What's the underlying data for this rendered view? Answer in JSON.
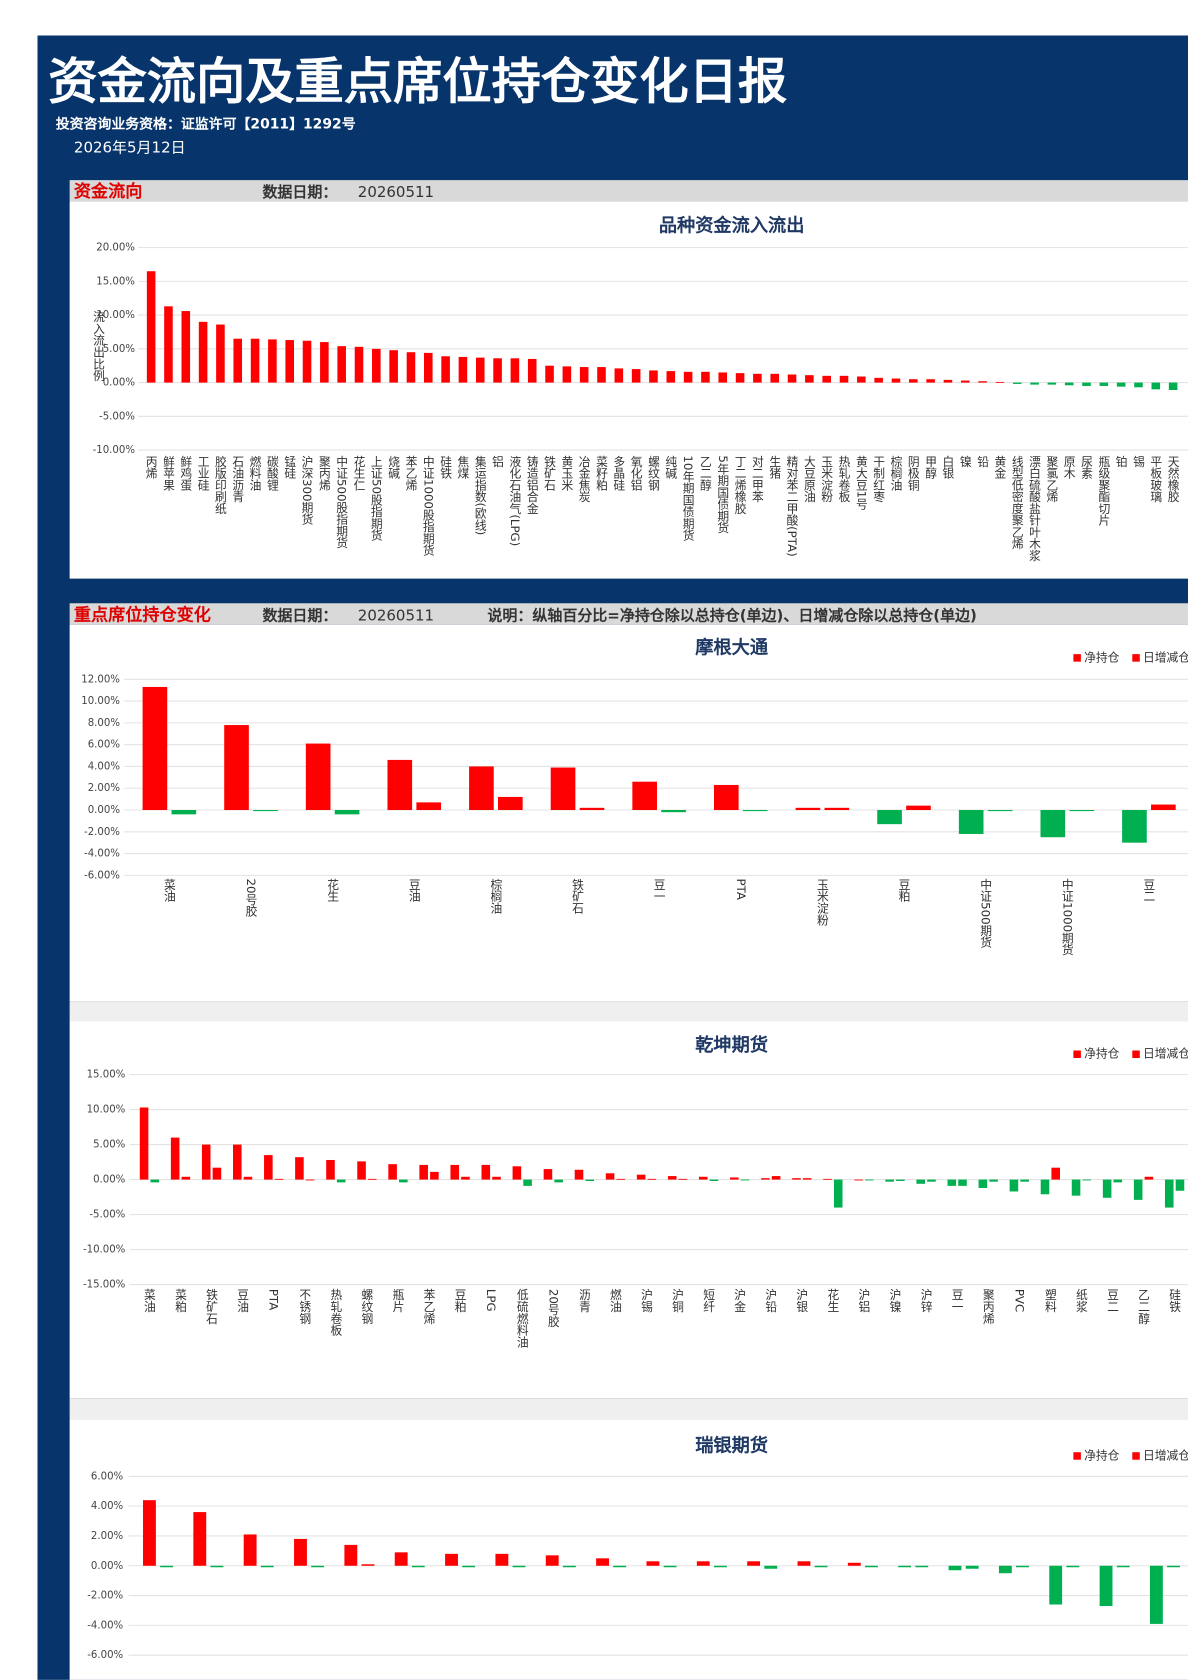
{
  "header": {
    "title": "资金流向及重点席位持仓变化日报",
    "license": "投资咨询业务资格：证监许可【2011】1292号",
    "date": "2026年5月12日"
  },
  "sections": [
    {
      "title": "资金流向",
      "date_label": "数据日期：",
      "date": "20260511"
    },
    {
      "title": "重点席位持仓变化",
      "date_label": "数据日期：",
      "date": "20260511",
      "note": "说明：纵轴百分比=净持仓除以总持仓(单边)、日增减仓除以总持仓(单边)"
    }
  ],
  "chart_data": [
    {
      "type": "bar",
      "title": "品种资金流入流出",
      "y_label": "流入流出比例",
      "categories": [
        "丙烯",
        "鲜苹果",
        "鲜鸡蛋",
        "工业硅",
        "胶版印刷纸",
        "石油沥青",
        "燃料油",
        "碳酸锂",
        "锰硅",
        "沪深300期货",
        "聚丙烯",
        "中证500股指期货",
        "花生仁",
        "上证50股指期货",
        "烧碱",
        "苯乙烯",
        "中证1000股指期货",
        "硅铁",
        "焦煤",
        "集运指数(欧线)",
        "铝",
        "液化石油气(LPG)",
        "铸造铝合金",
        "铁矿石",
        "黄玉米",
        "冶金焦炭",
        "菜籽粕",
        "多晶硅",
        "氧化铝",
        "螺纹钢",
        "纯碱",
        "10年期国债期货",
        "乙二醇",
        "5年期国债期货",
        "丁二烯橡胶",
        "对二甲苯",
        "生猪",
        "精对苯二甲酸(PTA)",
        "大豆原油",
        "玉米淀粉",
        "热轧卷板",
        "黄大豆1号",
        "干制红枣",
        "棕榈油",
        "阴极铜",
        "甲醇",
        "白银",
        "镍",
        "铅",
        "黄金",
        "线型低密度聚乙烯",
        "漂白硫酸盐针叶木浆",
        "聚氯乙烯",
        "原木",
        "尿素",
        "瓶级聚酯切片",
        "铂",
        "锡",
        "平板玻璃",
        "天然橡胶"
      ],
      "values": [
        16.5,
        11.3,
        10.6,
        9.0,
        8.6,
        6.5,
        6.5,
        6.4,
        6.3,
        6.2,
        6.0,
        5.4,
        5.3,
        5.0,
        4.8,
        4.5,
        4.4,
        3.9,
        3.8,
        3.7,
        3.6,
        3.6,
        3.5,
        2.5,
        2.4,
        2.3,
        2.3,
        2.1,
        2.0,
        1.8,
        1.7,
        1.6,
        1.6,
        1.5,
        1.4,
        1.3,
        1.3,
        1.2,
        1.1,
        1.0,
        1.0,
        0.9,
        0.7,
        0.6,
        0.5,
        0.5,
        0.4,
        0.3,
        0.2,
        0.1,
        -0.2,
        -0.3,
        -0.3,
        -0.4,
        -0.5,
        -0.5,
        -0.6,
        -0.7,
        -1.0,
        -1.1
      ],
      "color": "#ff0000",
      "negative_color": "#00b050",
      "ylim": [
        -10,
        20
      ],
      "yticks": [
        {
          "value": 20,
          "label": "20.00%"
        },
        {
          "value": 15,
          "label": "15.00%"
        },
        {
          "value": 10,
          "label": "10.00%"
        },
        {
          "value": 5,
          "label": "5.00%"
        },
        {
          "value": 0,
          "label": "0.00%"
        },
        {
          "value": -5,
          "label": "-5.00%"
        },
        {
          "value": -10,
          "label": "-10.00%"
        }
      ],
      "grid": true
    },
    {
      "type": "bar",
      "title": "摩根大通",
      "legend": "top-right",
      "categories": [
        "菜油",
        "20号胶",
        "花生",
        "豆油",
        "棕榈油",
        "铁矿石",
        "豆一",
        "PTA",
        "玉米淀粉",
        "豆粕",
        "中证500期货",
        "中证1000期货",
        "豆二"
      ],
      "series": [
        {
          "name": "净持仓",
          "color": "#ff0000",
          "values": [
            11.3,
            7.8,
            6.1,
            4.6,
            4.0,
            3.9,
            2.6,
            2.3,
            0.2,
            -1.3,
            -2.2,
            -2.5,
            -3.0
          ]
        },
        {
          "name": "日增减仓",
          "color": "#ff0000",
          "values": [
            -0.4,
            -0.1,
            -0.4,
            0.7,
            1.2,
            0.2,
            -0.2,
            -0.1,
            0.2,
            0.4,
            -0.1,
            -0.1,
            0.5
          ]
        }
      ],
      "negative_color": "#00b050",
      "ylim": [
        -6,
        12
      ],
      "yticks": [
        {
          "value": 12,
          "label": "12.00%"
        },
        {
          "value": 10,
          "label": "10.00%"
        },
        {
          "value": 8,
          "label": "8.00%"
        },
        {
          "value": 6,
          "label": "6.00%"
        },
        {
          "value": 4,
          "label": "4.00%"
        },
        {
          "value": 2,
          "label": "2.00%"
        },
        {
          "value": 0,
          "label": "0.00%"
        },
        {
          "value": -2,
          "label": "-2.00%"
        },
        {
          "value": -4,
          "label": "-4.00%"
        },
        {
          "value": -6,
          "label": "-6.00%"
        }
      ],
      "grid": true
    },
    {
      "type": "bar",
      "title": "乾坤期货",
      "legend": "top-right",
      "categories": [
        "菜油",
        "菜粕",
        "铁矿石",
        "豆油",
        "PTA",
        "不锈钢",
        "热轧卷板",
        "螺纹钢",
        "瓶片",
        "苯乙烯",
        "豆粕",
        "LPG",
        "低硫燃料油",
        "20号胶",
        "沥青",
        "燃油",
        "沪锡",
        "沪铜",
        "短纤",
        "沪金",
        "沪铅",
        "沪银",
        "花生",
        "沪铝",
        "沪镍",
        "沪锌",
        "豆一",
        "聚丙烯",
        "PVC",
        "塑料",
        "纸浆",
        "豆二",
        "乙二醇",
        "硅铁"
      ],
      "series": [
        {
          "name": "净持仓",
          "color": "#ff0000",
          "values": [
            10.3,
            6.0,
            5.0,
            5.0,
            3.5,
            3.2,
            2.8,
            2.6,
            2.2,
            2.1,
            2.1,
            2.1,
            1.9,
            1.5,
            1.4,
            0.9,
            0.7,
            0.5,
            0.4,
            0.3,
            0.2,
            0.2,
            0.1,
            0.0,
            -0.3,
            -0.6,
            -0.9,
            -1.2,
            -1.7,
            -2.1,
            -2.3,
            -2.6,
            -2.9,
            -4.0
          ]
        },
        {
          "name": "日增减仓",
          "color": "#ff0000",
          "values": [
            -0.4,
            0.4,
            1.7,
            0.4,
            0.1,
            0.0,
            -0.4,
            0.1,
            -0.4,
            1.1,
            0.4,
            0.4,
            -0.9,
            -0.4,
            -0.2,
            0.1,
            0.1,
            0.1,
            -0.2,
            -0.1,
            0.5,
            0.2,
            -4.0,
            -0.1,
            -0.2,
            -0.3,
            -0.9,
            -0.3,
            -0.3,
            1.7,
            -0.1,
            -0.4,
            0.4,
            -1.6
          ]
        }
      ],
      "negative_color": "#00b050",
      "ylim": [
        -15,
        15
      ],
      "yticks": [
        {
          "value": 15,
          "label": "15.00%"
        },
        {
          "value": 10,
          "label": "10.00%"
        },
        {
          "value": 5,
          "label": "5.00%"
        },
        {
          "value": 0,
          "label": "0.00%"
        },
        {
          "value": -5,
          "label": "-5.00%"
        },
        {
          "value": -10,
          "label": "-10.00%"
        },
        {
          "value": -15,
          "label": "-15.00%"
        }
      ],
      "grid": true
    },
    {
      "type": "bar",
      "title": "瑞银期货",
      "legend": "top-right",
      "categories": [
        null,
        null,
        null,
        null,
        null,
        null,
        null,
        null,
        null,
        null,
        null,
        null,
        null,
        null,
        null,
        null,
        null,
        null,
        null,
        null,
        null
      ],
      "series": [
        {
          "name": "净持仓",
          "color": "#ff0000",
          "values": [
            4.4,
            3.6,
            2.1,
            1.8,
            1.4,
            0.9,
            0.8,
            0.8,
            0.7,
            0.5,
            0.3,
            0.3,
            0.3,
            0.3,
            0.2,
            -0.1,
            -0.3,
            -0.5,
            -2.6,
            -2.7,
            -3.9
          ]
        },
        {
          "name": "日增减仓",
          "color": "#ff0000",
          "values": [
            -0.1,
            -0.1,
            -0.1,
            -0.1,
            0.1,
            -0.1,
            -0.1,
            -0.1,
            -0.1,
            -0.1,
            -0.1,
            -0.1,
            -0.2,
            -0.1,
            -0.1,
            -0.1,
            -0.2,
            -0.1,
            -0.1,
            -0.1,
            -0.1
          ]
        }
      ],
      "negative_color": "#00b050",
      "ylim": [
        -6,
        6
      ],
      "yticks": [
        {
          "value": 6,
          "label": "6.00%"
        },
        {
          "value": 4,
          "label": "4.00%"
        },
        {
          "value": 2,
          "label": "2.00%"
        },
        {
          "value": 0,
          "label": "0.00%"
        },
        {
          "value": -2,
          "label": "-2.00%"
        },
        {
          "value": -4,
          "label": "-4.00%"
        },
        {
          "value": -6,
          "label": "-6.00%"
        }
      ],
      "grid": true
    }
  ]
}
